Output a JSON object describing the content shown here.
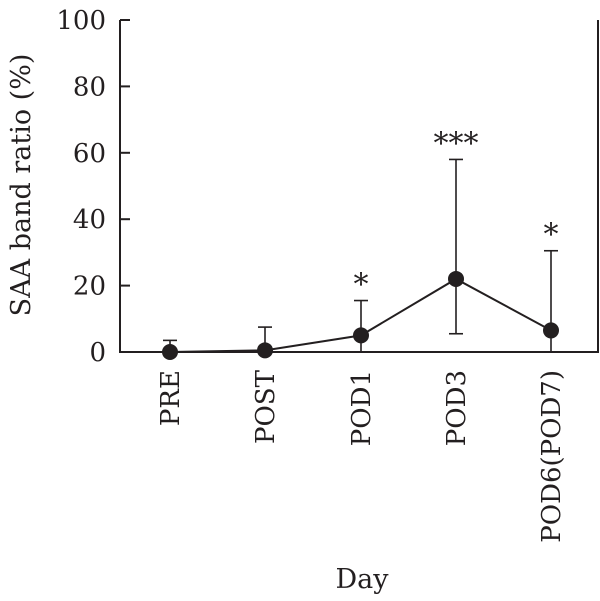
{
  "chart_data": {
    "type": "line",
    "xlabel": "Day",
    "ylabel": "SAA band ratio (%)",
    "ylim": [
      0,
      100
    ],
    "yticks": [
      0,
      20,
      40,
      60,
      80,
      100
    ],
    "ytick_labels": [
      "0",
      "20",
      "40",
      "60",
      "80",
      "100"
    ],
    "categories": [
      "PRE",
      "POST",
      "POD1",
      "POD3",
      "POD6(POD7)"
    ],
    "series": [
      {
        "values": [
          0,
          0.5,
          5,
          22,
          6.5
        ],
        "error_upper": [
          3.5,
          7.5,
          15.5,
          58,
          30.5
        ],
        "error_lower": [
          0,
          0,
          0,
          5.5,
          0
        ],
        "significance": [
          "",
          "",
          "*",
          "***",
          "*"
        ]
      }
    ],
    "grid": false,
    "colors": {
      "ink": "#231f20"
    }
  }
}
